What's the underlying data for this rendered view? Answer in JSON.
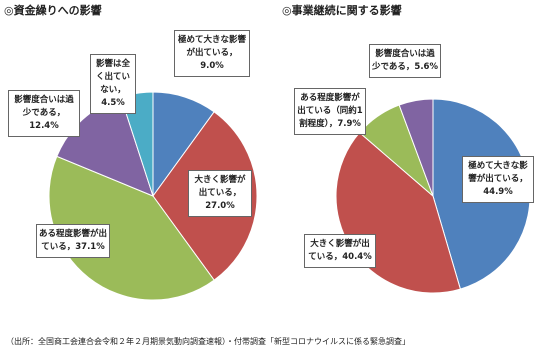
{
  "chart_data": [
    {
      "type": "pie",
      "title": "◎資金繰りへの影響",
      "values": [
        9.0,
        27.0,
        37.1,
        12.4,
        4.5
      ],
      "value_labels": [
        "極めて大きな影響が出ている，9.0%",
        "大きく影響が出ている，27.0%",
        "ある程度影響が出ている，37.1%",
        "影響度合いは過少である，12.4%",
        "影響は全く出ていない，4.5%"
      ],
      "colors": [
        "#4f81bd",
        "#c0504d",
        "#9bbb59",
        "#8064a2",
        "#4bacc6"
      ]
    },
    {
      "type": "pie",
      "title": "◎事業継続に関する影響",
      "values": [
        44.9,
        40.4,
        7.9,
        5.6
      ],
      "value_labels": [
        "極めて大きな影響が出ている，44.9%",
        "大きく影響が出ている，40.4%",
        "ある程度影響が出ている（同約1割程度），7.9%",
        "影響度合いは過少である，5.6%"
      ],
      "colors": [
        "#4f81bd",
        "#c0504d",
        "#9bbb59",
        "#8064a2"
      ]
    }
  ],
  "source": "（出所：全国商工会連合会令和２年２月期景気動向調査速報）・付帯調査「新型コロナウイルスに係る緊急調査」"
}
